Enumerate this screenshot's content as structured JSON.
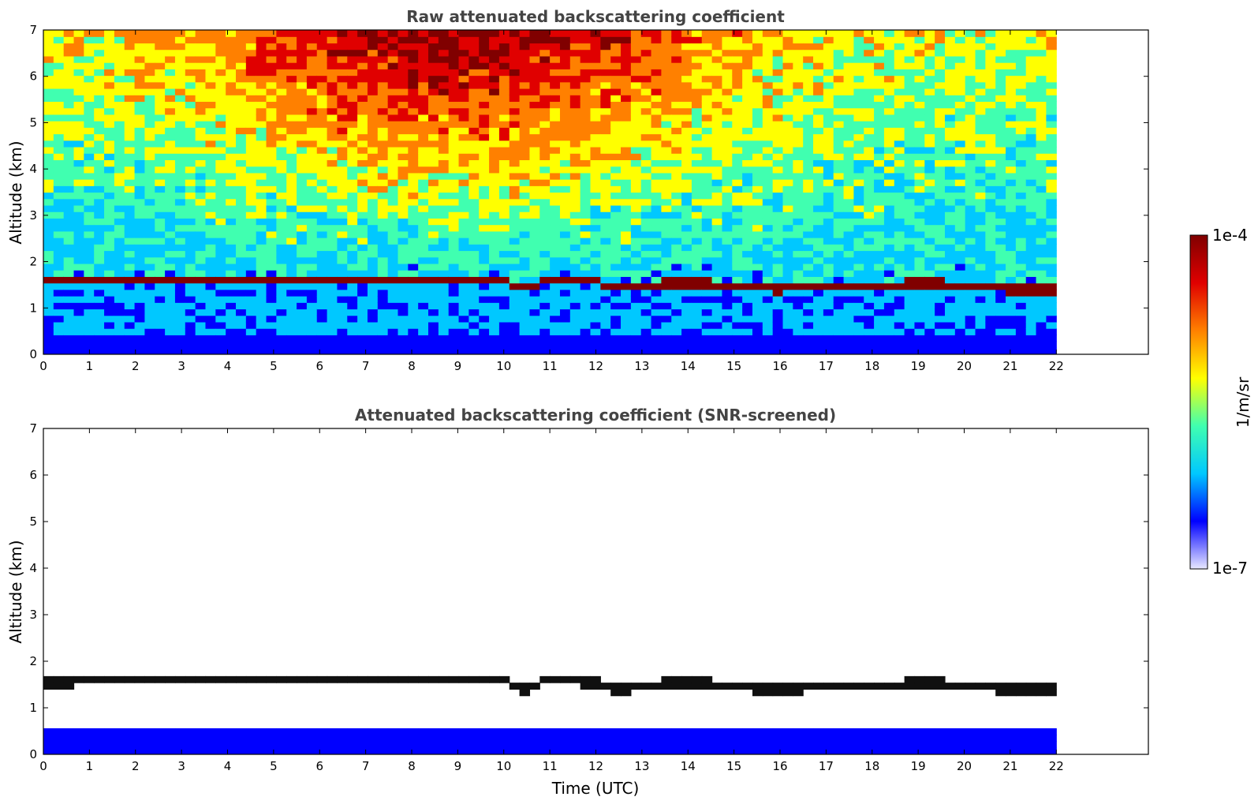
{
  "chart_data": [
    {
      "type": "heatmap",
      "title": "Raw attenuated backscattering coefficient",
      "xlabel": "",
      "ylabel": "Altitude (km)",
      "xlim": [
        0,
        24
      ],
      "ylim": [
        0,
        7
      ],
      "xticks": [
        "0",
        "1",
        "2",
        "3",
        "4",
        "5",
        "6",
        "7",
        "8",
        "9",
        "10",
        "11",
        "12",
        "13",
        "14",
        "15",
        "16",
        "17",
        "18",
        "19",
        "20",
        "21",
        "22"
      ],
      "yticks": [
        "0",
        "1",
        "2",
        "3",
        "4",
        "5",
        "6",
        "7"
      ],
      "data_extent_x": [
        0,
        22
      ],
      "cloud_base_km": [
        [
          0,
          1.45
        ],
        [
          1,
          1.5
        ],
        [
          2,
          1.55
        ],
        [
          3,
          1.55
        ],
        [
          4,
          1.48
        ],
        [
          5,
          1.52
        ],
        [
          6,
          1.5
        ],
        [
          7,
          1.5
        ],
        [
          8,
          1.52
        ],
        [
          9,
          1.53
        ],
        [
          10,
          1.52
        ],
        [
          10.5,
          1.3
        ],
        [
          11,
          1.55
        ],
        [
          12,
          1.45
        ],
        [
          12.5,
          1.3
        ],
        [
          13,
          1.4
        ],
        [
          14,
          1.45
        ],
        [
          15,
          1.38
        ],
        [
          16,
          1.3
        ],
        [
          17,
          1.4
        ],
        [
          18,
          1.35
        ],
        [
          19,
          1.45
        ],
        [
          20,
          1.4
        ],
        [
          21,
          1.3
        ],
        [
          22,
          1.28
        ]
      ]
    },
    {
      "type": "heatmap",
      "title": "Attenuated backscattering coefficient (SNR-screened)",
      "xlabel": "Time (UTC)",
      "ylabel": "Altitude (km)",
      "xlim": [
        0,
        24
      ],
      "ylim": [
        0,
        7
      ],
      "xticks": [
        "0",
        "1",
        "2",
        "3",
        "4",
        "5",
        "6",
        "7",
        "8",
        "9",
        "10",
        "11",
        "12",
        "13",
        "14",
        "15",
        "16",
        "17",
        "18",
        "19",
        "20",
        "21",
        "22"
      ],
      "yticks": [
        "0",
        "1",
        "2",
        "3",
        "4",
        "5",
        "6",
        "7"
      ],
      "data_extent_x": [
        0,
        22
      ],
      "cloud_base_km": [
        [
          0,
          1.45
        ],
        [
          1,
          1.5
        ],
        [
          2,
          1.55
        ],
        [
          3,
          1.55
        ],
        [
          4,
          1.48
        ],
        [
          5,
          1.52
        ],
        [
          6,
          1.5
        ],
        [
          7,
          1.5
        ],
        [
          8,
          1.52
        ],
        [
          9,
          1.53
        ],
        [
          10,
          1.52
        ],
        [
          10.5,
          1.3
        ],
        [
          11,
          1.55
        ],
        [
          12,
          1.45
        ],
        [
          12.5,
          1.3
        ],
        [
          13,
          1.4
        ],
        [
          14,
          1.45
        ],
        [
          15,
          1.38
        ],
        [
          16,
          1.3
        ],
        [
          17,
          1.4
        ],
        [
          18,
          1.35
        ],
        [
          19,
          1.45
        ],
        [
          20,
          1.4
        ],
        [
          21,
          1.3
        ],
        [
          22,
          1.28
        ]
      ]
    }
  ],
  "colorbar": {
    "label": "1/m/sr",
    "max_label": "1e-4",
    "min_label": "1e-7",
    "scale": "log",
    "colors": [
      "#e8e8ff",
      "#0000ff",
      "#00c8ff",
      "#40ffb0",
      "#ffff00",
      "#ff8000",
      "#e00000",
      "#800000"
    ]
  }
}
